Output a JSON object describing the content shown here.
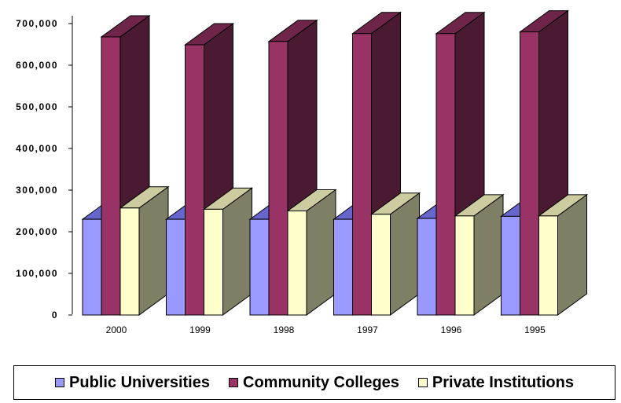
{
  "chart_data": {
    "type": "bar",
    "categories": [
      "2000",
      "1999",
      "1998",
      "1997",
      "1996",
      "1995"
    ],
    "series": [
      {
        "name": "Public Universities",
        "values": [
          230000,
          230000,
          230000,
          230000,
          232000,
          237000
        ]
      },
      {
        "name": "Community Colleges",
        "values": [
          668000,
          649000,
          657000,
          676000,
          676000,
          680000
        ]
      },
      {
        "name": "Private Institutions",
        "values": [
          257000,
          254000,
          250000,
          242000,
          238000,
          238000
        ]
      }
    ],
    "yticks": [
      "0",
      "100,000",
      "200,000",
      "300,000",
      "400,000",
      "500,000",
      "600,000",
      "700,000"
    ],
    "ylim": [
      0,
      700000
    ],
    "legend_position": "bottom",
    "colors": {
      "Public Universities": {
        "front": "#9999ff",
        "top": "#6666cc",
        "side": "#5a5aa8"
      },
      "Community Colleges": {
        "front": "#993366",
        "top": "#6e2549",
        "side": "#4a1a33"
      },
      "Private Institutions": {
        "front": "#ffffcc",
        "top": "#cccca0",
        "side": "#7f7f66"
      }
    }
  }
}
